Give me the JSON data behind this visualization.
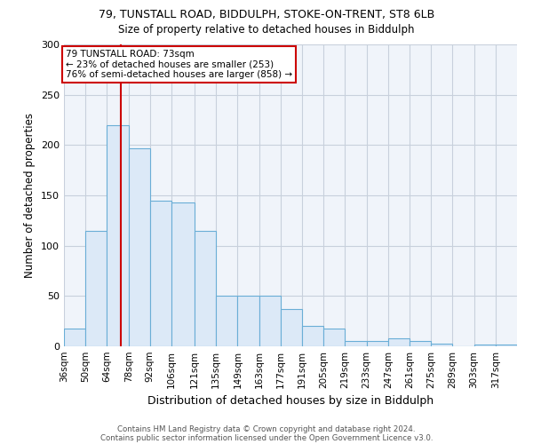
{
  "title1": "79, TUNSTALL ROAD, BIDDULPH, STOKE-ON-TRENT, ST8 6LB",
  "title2": "Size of property relative to detached houses in Biddulph",
  "xlabel": "Distribution of detached houses by size in Biddulph",
  "ylabel": "Number of detached properties",
  "footnote1": "Contains HM Land Registry data © Crown copyright and database right 2024.",
  "footnote2": "Contains public sector information licensed under the Open Government Licence v3.0.",
  "annotation_line1": "79 TUNSTALL ROAD: 73sqm",
  "annotation_line2": "← 23% of detached houses are smaller (253)",
  "annotation_line3": "76% of semi-detached houses are larger (858) →",
  "bar_left_edges": [
    36,
    50,
    64,
    78,
    92,
    106,
    121,
    135,
    149,
    163,
    177,
    191,
    205,
    219,
    233,
    247,
    261,
    275,
    289,
    303,
    317
  ],
  "bar_heights": [
    18,
    115,
    220,
    197,
    145,
    143,
    115,
    50,
    50,
    50,
    37,
    20,
    18,
    5,
    5,
    8,
    5,
    3,
    0,
    2,
    2
  ],
  "bar_color": "#dce9f7",
  "bar_edge_color": "#6aaed6",
  "vline_color": "#cc0000",
  "vline_x": 73,
  "ylim": [
    0,
    300
  ],
  "yticks": [
    0,
    50,
    100,
    150,
    200,
    250,
    300
  ],
  "bg_color": "#f0f4fa",
  "grid_color": "#c8d0dc",
  "annotation_box_color": "#cc0000",
  "categories": [
    "36sqm",
    "50sqm",
    "64sqm",
    "78sqm",
    "92sqm",
    "106sqm",
    "121sqm",
    "135sqm",
    "149sqm",
    "163sqm",
    "177sqm",
    "191sqm",
    "205sqm",
    "219sqm",
    "233sqm",
    "247sqm",
    "261sqm",
    "275sqm",
    "289sqm",
    "303sqm",
    "317sqm"
  ]
}
